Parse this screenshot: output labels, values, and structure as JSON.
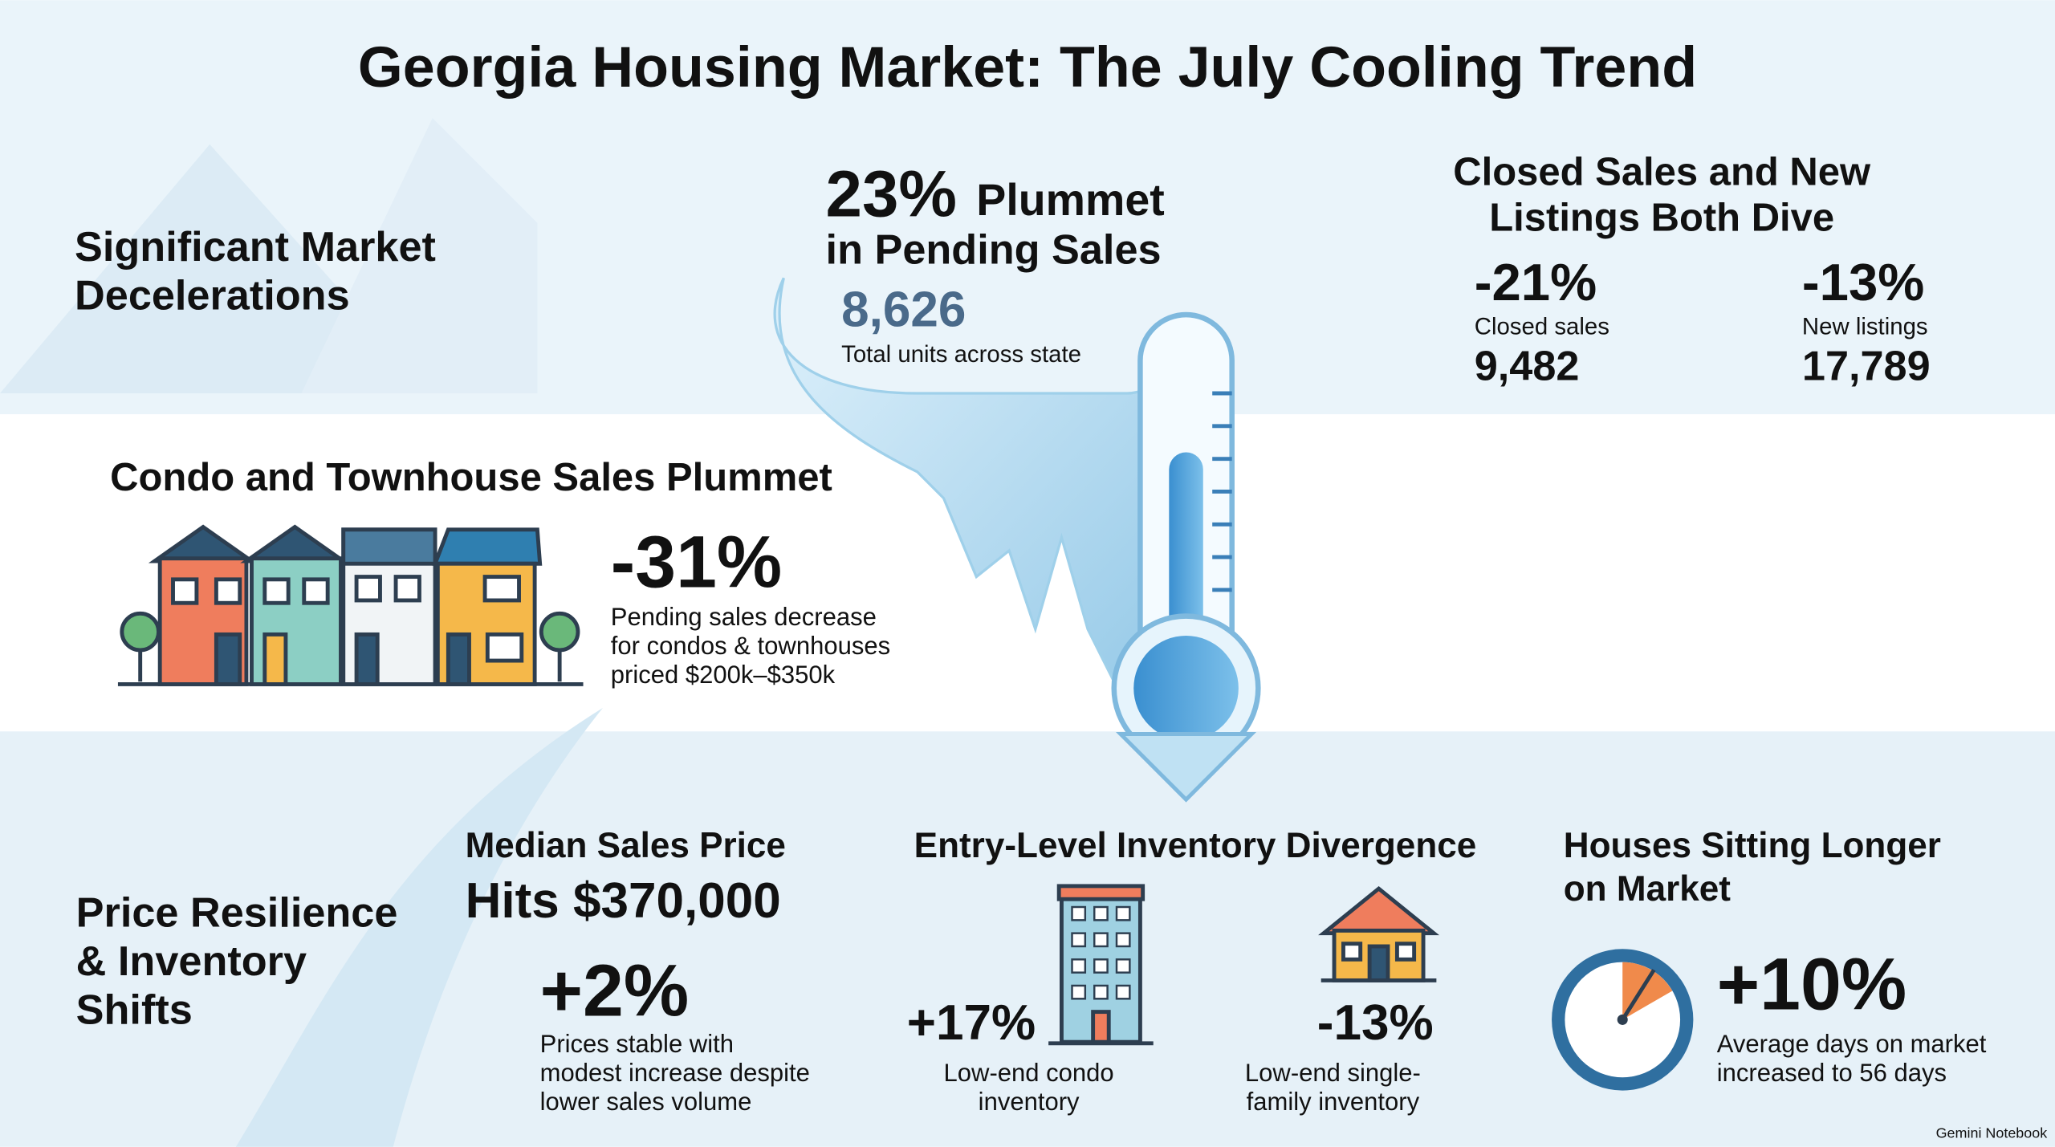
{
  "title": "Georgia Housing Market: The July Cooling Trend",
  "decelerations": {
    "label": [
      "Significant Market",
      "Decelerations"
    ]
  },
  "pending": {
    "percent": "23%",
    "verb": "Plummet",
    "subject": "in Pending Sales",
    "value": "8,626",
    "caption": "Total units across state"
  },
  "closed": {
    "title": [
      "Closed Sales and New",
      "Listings Both Dive"
    ],
    "stats": [
      {
        "change": "-21%",
        "label": "Closed sales",
        "count": "9,482"
      },
      {
        "change": "-13%",
        "label": "New listings",
        "count": "17,789"
      }
    ]
  },
  "condo": {
    "title": "Condo and Townhouse Sales Plummet",
    "change": "-31%",
    "caption": [
      "Pending sales decrease",
      "for condos & townhouses",
      "priced $200k–$350k"
    ]
  },
  "price": {
    "label": [
      "Price Resilience",
      "& Inventory",
      "Shifts"
    ]
  },
  "median": {
    "title": "Median Sales Price",
    "headline": "Hits $370,000",
    "change": "+2%",
    "caption": [
      "Prices stable with",
      "modest increase despite",
      "lower sales volume"
    ]
  },
  "entry": {
    "title": "Entry-Level Inventory Divergence",
    "items": [
      {
        "change": "+17%",
        "caption": [
          "Low-end condo",
          "inventory"
        ]
      },
      {
        "change": "-13%",
        "caption": [
          "Low-end single-",
          "family inventory"
        ]
      }
    ]
  },
  "days": {
    "title": [
      "Houses Sitting Longer",
      "on Market"
    ],
    "change": "+10%",
    "caption": [
      "Average days on market",
      "increased to 56 days"
    ]
  },
  "footer": "Gemini Notebook"
}
